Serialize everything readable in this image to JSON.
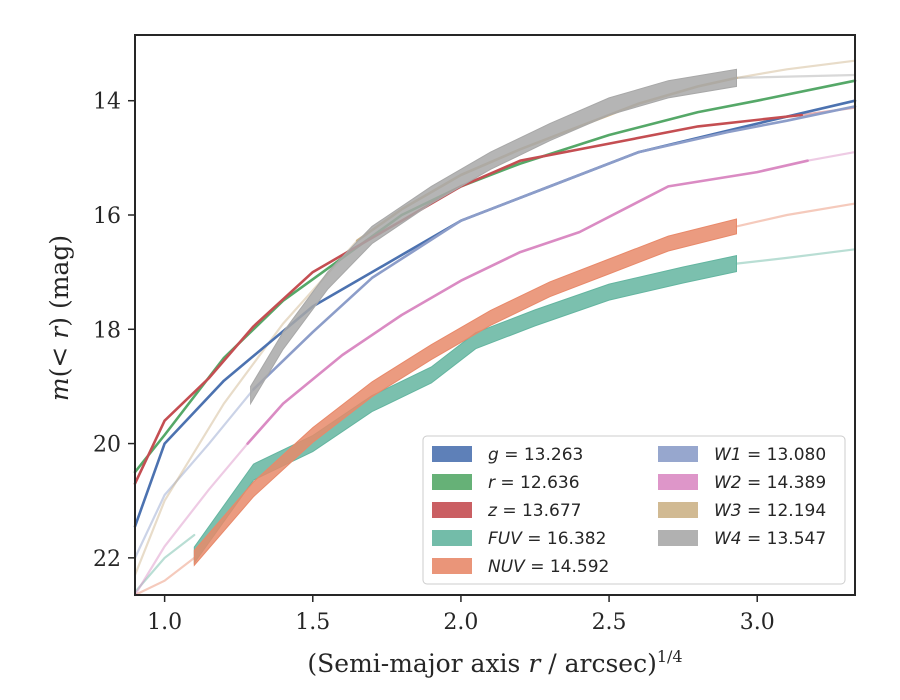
{
  "chart_data": {
    "type": "line",
    "xlabel_main": "(Semi-major axis ",
    "xlabel_var": "r",
    "xlabel_rest": " / arcsec)",
    "xlabel_sup": "1/4",
    "ylabel_pre": "m",
    "ylabel_paren": "(< ",
    "ylabel_var": "r",
    "ylabel_post": ") (mag)",
    "xlim": [
      0.9,
      3.33
    ],
    "ylim": [
      22.65,
      12.85
    ],
    "y_inverted": true,
    "xticks": [
      1.0,
      1.5,
      2.0,
      2.5,
      3.0
    ],
    "xtick_labels": [
      "1.0",
      "1.5",
      "2.0",
      "2.5",
      "3.0"
    ],
    "yticks": [
      14,
      16,
      18,
      20,
      22
    ],
    "ytick_labels": [
      "14",
      "16",
      "18",
      "20",
      "22"
    ],
    "grid": false,
    "legend_position": "lower-right",
    "series": [
      {
        "name": "g",
        "value": "13.263",
        "color": "#4c72b0",
        "band": 0.06,
        "solid": [
          [
            0.9,
            21.45
          ],
          [
            1.0,
            20.0
          ],
          [
            1.2,
            18.9
          ],
          [
            1.5,
            17.6
          ],
          [
            1.8,
            16.7
          ],
          [
            2.0,
            16.1
          ],
          [
            2.3,
            15.5
          ],
          [
            2.6,
            14.9
          ],
          [
            3.0,
            14.4
          ],
          [
            3.33,
            14.0
          ]
        ],
        "faint": []
      },
      {
        "name": "r",
        "value": "12.636",
        "color": "#55a868",
        "band": 0.05,
        "solid": [
          [
            0.9,
            20.5
          ],
          [
            1.0,
            19.85
          ],
          [
            1.2,
            18.5
          ],
          [
            1.4,
            17.5
          ],
          [
            1.6,
            16.75
          ],
          [
            1.8,
            16.0
          ],
          [
            2.0,
            15.5
          ],
          [
            2.2,
            15.1
          ],
          [
            2.5,
            14.6
          ],
          [
            2.8,
            14.2
          ],
          [
            3.0,
            14.0
          ],
          [
            3.33,
            13.65
          ]
        ],
        "faint": []
      },
      {
        "name": "z",
        "value": "13.677",
        "color": "#c44e52",
        "band": 0.06,
        "solid": [
          [
            0.9,
            20.7
          ],
          [
            1.0,
            19.6
          ],
          [
            1.15,
            18.85
          ],
          [
            1.3,
            17.95
          ],
          [
            1.5,
            17.0
          ],
          [
            1.8,
            16.1
          ],
          [
            2.0,
            15.5
          ],
          [
            2.2,
            15.05
          ],
          [
            2.5,
            14.75
          ],
          [
            2.8,
            14.45
          ],
          [
            3.15,
            14.25
          ]
        ],
        "faint": [
          [
            3.15,
            14.25
          ],
          [
            3.33,
            14.12
          ]
        ]
      },
      {
        "name": "FUV",
        "value": "16.382",
        "color": "#64b5a0",
        "band": 0.28,
        "solid": [
          [
            1.1,
            21.95
          ],
          [
            1.3,
            20.5
          ],
          [
            1.5,
            20.0
          ],
          [
            1.7,
            19.3
          ],
          [
            1.9,
            18.8
          ],
          [
            2.05,
            18.2
          ],
          [
            2.25,
            17.8
          ],
          [
            2.5,
            17.35
          ],
          [
            2.75,
            17.05
          ],
          [
            2.93,
            16.85
          ]
        ],
        "faint": [
          [
            0.9,
            22.6
          ],
          [
            1.0,
            22.0
          ],
          [
            1.1,
            21.6
          ]
        ],
        "faint2": [
          [
            2.93,
            16.85
          ],
          [
            3.1,
            16.75
          ],
          [
            3.33,
            16.6
          ]
        ]
      },
      {
        "name": "NUV",
        "value": "14.592",
        "color": "#e8896a",
        "band": 0.26,
        "solid": [
          [
            1.1,
            22.0
          ],
          [
            1.3,
            20.8
          ],
          [
            1.5,
            19.85
          ],
          [
            1.7,
            19.05
          ],
          [
            1.9,
            18.4
          ],
          [
            2.1,
            17.8
          ],
          [
            2.3,
            17.3
          ],
          [
            2.5,
            16.9
          ],
          [
            2.7,
            16.5
          ],
          [
            2.93,
            16.2
          ]
        ],
        "faint": [
          [
            0.9,
            22.8
          ],
          [
            1.0,
            22.4
          ],
          [
            1.1,
            22.0
          ]
        ],
        "faint2": [
          [
            2.93,
            16.2
          ],
          [
            3.1,
            16.0
          ],
          [
            3.33,
            15.8
          ]
        ]
      },
      {
        "name": "W1",
        "value": "13.080",
        "color": "#8c9dc9",
        "band": 0.07,
        "solid": [
          [
            1.3,
            19.05
          ],
          [
            1.5,
            18.05
          ],
          [
            1.7,
            17.1
          ],
          [
            2.0,
            16.1
          ],
          [
            2.3,
            15.5
          ],
          [
            2.6,
            14.9
          ],
          [
            2.9,
            14.55
          ],
          [
            3.1,
            14.35
          ],
          [
            3.33,
            14.1
          ]
        ],
        "faint": [
          [
            0.9,
            22.0
          ],
          [
            1.0,
            20.9
          ],
          [
            1.15,
            20.0
          ],
          [
            1.3,
            19.05
          ]
        ]
      },
      {
        "name": "W2",
        "value": "14.389",
        "color": "#da8bc3",
        "band": 0.08,
        "solid": [
          [
            1.28,
            20.0
          ],
          [
            1.4,
            19.3
          ],
          [
            1.6,
            18.45
          ],
          [
            1.8,
            17.75
          ],
          [
            2.0,
            17.15
          ],
          [
            2.2,
            16.65
          ],
          [
            2.4,
            16.3
          ],
          [
            2.7,
            15.5
          ],
          [
            3.0,
            15.25
          ],
          [
            3.17,
            15.05
          ]
        ],
        "faint": [
          [
            0.9,
            22.8
          ],
          [
            1.0,
            21.8
          ],
          [
            1.15,
            20.8
          ],
          [
            1.28,
            20.0
          ]
        ],
        "faint2": [
          [
            3.17,
            15.05
          ],
          [
            3.33,
            14.9
          ]
        ]
      },
      {
        "name": "W3",
        "value": "12.194",
        "color": "#ccb287",
        "band": 0.09,
        "solid": [
          [
            1.65,
            16.45
          ],
          [
            1.8,
            15.9
          ],
          [
            2.0,
            15.3
          ],
          [
            2.2,
            14.85
          ],
          [
            2.4,
            14.45
          ],
          [
            2.6,
            14.05
          ],
          [
            2.8,
            13.75
          ],
          [
            2.93,
            13.6
          ]
        ],
        "faint": [
          [
            0.9,
            22.3
          ],
          [
            1.0,
            21.0
          ],
          [
            1.2,
            19.3
          ],
          [
            1.4,
            17.9
          ],
          [
            1.65,
            16.45
          ]
        ],
        "faint2": [
          [
            2.93,
            13.6
          ],
          [
            3.1,
            13.45
          ],
          [
            3.33,
            13.3
          ]
        ]
      },
      {
        "name": "W4",
        "value": "13.547",
        "color": "#a8a8a8",
        "band": 0.3,
        "solid": [
          [
            1.29,
            19.15
          ],
          [
            1.4,
            18.2
          ],
          [
            1.55,
            17.15
          ],
          [
            1.7,
            16.35
          ],
          [
            1.9,
            15.65
          ],
          [
            2.1,
            15.05
          ],
          [
            2.3,
            14.55
          ],
          [
            2.5,
            14.1
          ],
          [
            2.7,
            13.8
          ],
          [
            2.93,
            13.6
          ]
        ],
        "faint": [],
        "faint2": [
          [
            2.93,
            13.6
          ],
          [
            3.33,
            13.55
          ]
        ]
      }
    ]
  }
}
